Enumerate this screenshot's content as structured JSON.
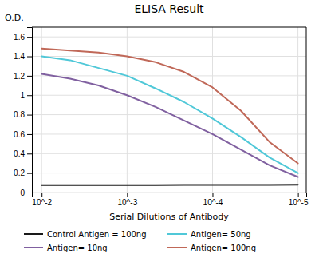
{
  "chart_data": {
    "type": "line",
    "title": "ELISA Result",
    "x_label": "Serial Dilutions of Antibody",
    "y_label": "O.D.",
    "x": [
      0.01,
      0.004641588833612777,
      0.002154434690031882,
      0.001,
      0.0004641588833612777,
      0.00021544346900318823,
      0.0001,
      4.641588833612773e-05,
      2.1544346900318823e-05,
      1e-05
    ],
    "series": [
      {
        "name": "Control Antigen = 100ng",
        "color": "#1a1a1a",
        "values": [
          0.075,
          0.075,
          0.075,
          0.076,
          0.076,
          0.077,
          0.078,
          0.079,
          0.079,
          0.08
        ]
      },
      {
        "name": "Antigen= 10ng",
        "color": "#8060A0",
        "values": [
          1.22,
          1.17,
          1.1,
          1.0,
          0.88,
          0.74,
          0.6,
          0.44,
          0.28,
          0.16
        ]
      },
      {
        "name": "Antigen= 50ng",
        "color": "#50C8D8",
        "values": [
          1.4,
          1.36,
          1.28,
          1.2,
          1.07,
          0.93,
          0.76,
          0.57,
          0.36,
          0.2
        ]
      },
      {
        "name": "Antigen= 100ng",
        "color": "#C06858",
        "values": [
          1.48,
          1.46,
          1.44,
          1.4,
          1.34,
          1.24,
          1.08,
          0.84,
          0.52,
          0.3
        ]
      }
    ],
    "log": "x",
    "xlim": [
      0.013,
      8e-06
    ],
    "xticks": [
      {
        "value": 0.01,
        "label": "10^-2"
      },
      {
        "value": 0.001,
        "label": "10^-3"
      },
      {
        "value": 0.0001,
        "label": "10^-4"
      },
      {
        "value": 1e-05,
        "label": "10^-5"
      }
    ],
    "ylim": [
      0,
      1.7
    ],
    "yticks": [
      0,
      0.2,
      0.4,
      0.6,
      0.8,
      1,
      1.2,
      1.4,
      1.6
    ],
    "grid": true,
    "legend": "bottom"
  }
}
